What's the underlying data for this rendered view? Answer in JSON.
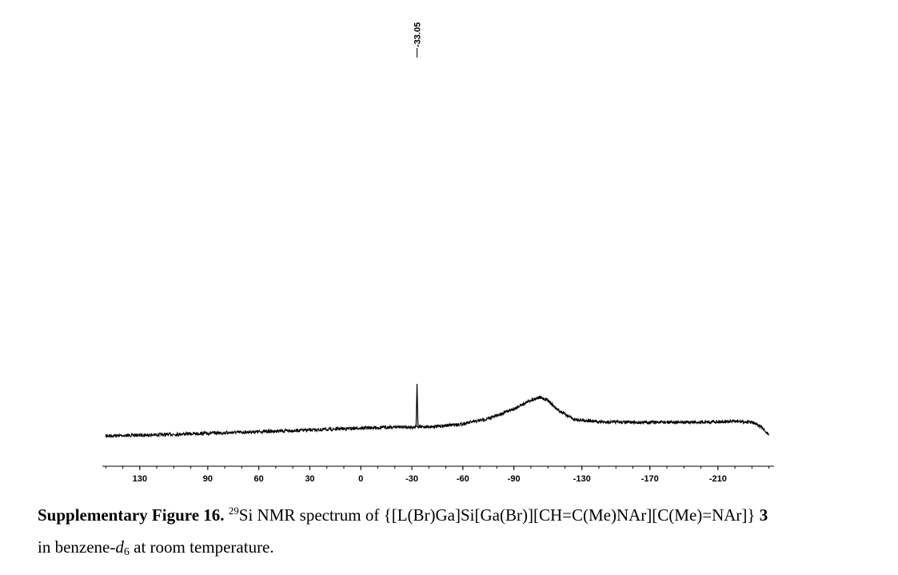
{
  "chart_data": {
    "type": "line",
    "title": "",
    "xlabel": "",
    "ylabel": "",
    "x_reversed": true,
    "xlim": [
      152,
      -243
    ],
    "x_ticks": [
      130,
      90,
      60,
      30,
      0,
      -30,
      -60,
      -90,
      -130,
      -170,
      -210
    ],
    "x_tick_labels": [
      "130",
      "90",
      "60",
      "30",
      "0",
      "-30",
      "-60",
      "-90",
      "-130",
      "-170",
      "-210"
    ],
    "peak_labels": [
      {
        "x": -33.05,
        "label": "-33.05"
      }
    ],
    "series": [
      {
        "description_points": true,
        "x": [
          150,
          120,
          90,
          60,
          30,
          0,
          -20,
          -32.5,
          -33.05,
          -33.6,
          -45,
          -60,
          -75,
          -90,
          -100,
          -105,
          -110,
          -115,
          -125,
          -140,
          -160,
          -190,
          -220,
          -230,
          -235,
          -240
        ],
        "y": [
          0.0,
          0.02,
          0.05,
          0.08,
          0.11,
          0.15,
          0.17,
          0.17,
          1.0,
          0.17,
          0.18,
          0.23,
          0.33,
          0.52,
          0.69,
          0.74,
          0.69,
          0.52,
          0.32,
          0.27,
          0.26,
          0.26,
          0.28,
          0.26,
          0.18,
          0.02
        ]
      }
    ],
    "grid": false,
    "legend": "none"
  },
  "caption": {
    "figure_label": "Supplementary Figure 16.",
    "isotope_mass": "29",
    "text_main": "Si NMR spectrum of {[L(Br)Ga]Si[Ga(Br)][CH=C(Me)NAr][C(Me)=NAr]}",
    "compound_number": "3",
    "text_line2_pre": "in benzene-",
    "solvent_italic": "d",
    "solvent_sub": "6",
    "text_line2_post": " at room temperature."
  },
  "colors": {
    "line": "#000000",
    "background": "#ffffff"
  }
}
